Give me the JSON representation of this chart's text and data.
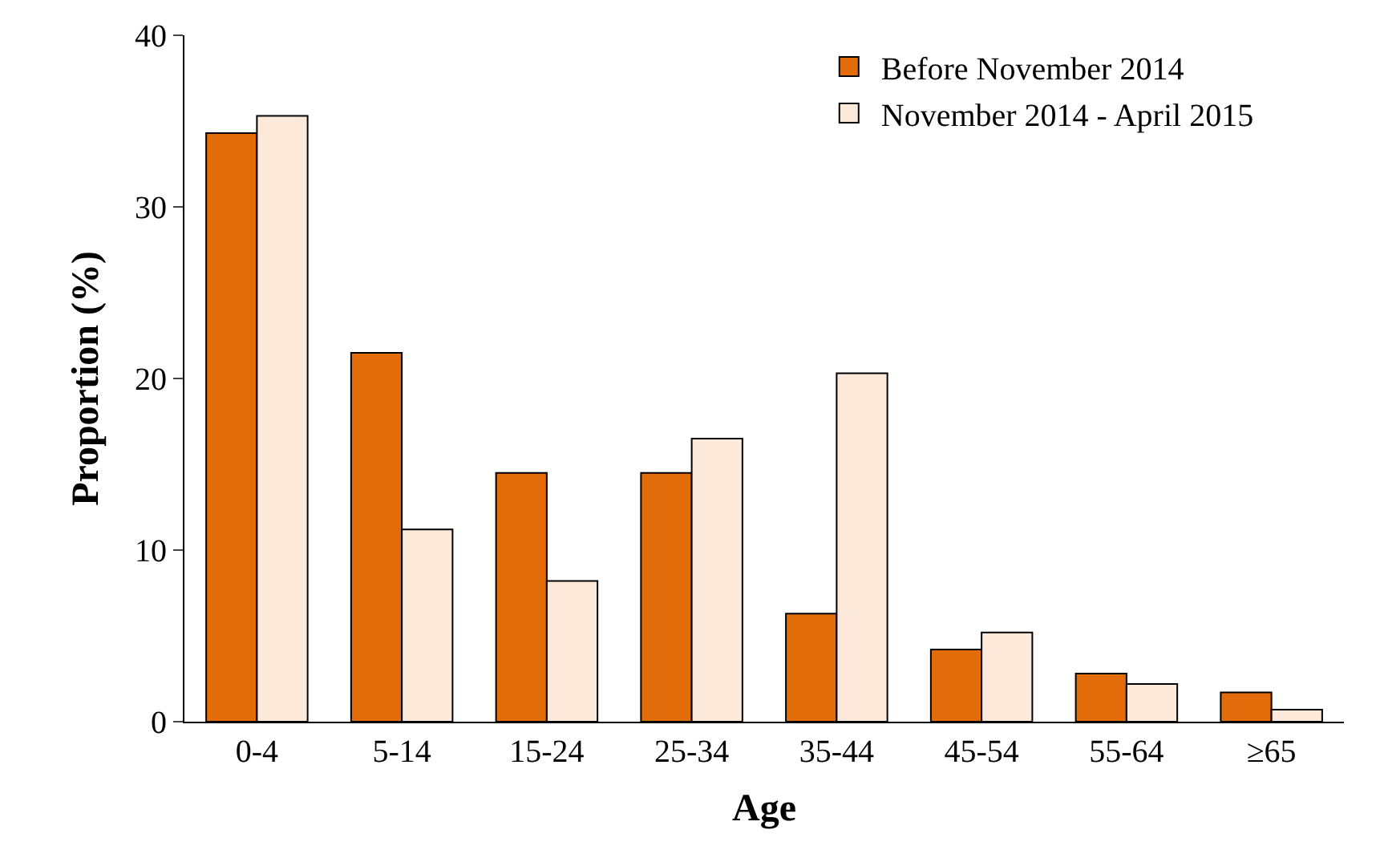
{
  "chart_data": {
    "type": "bar",
    "xlabel": "Age",
    "ylabel": "Proportion (%)",
    "categories": [
      "0-4",
      "5-14",
      "15-24",
      "25-34",
      "35-44",
      "45-54",
      "55-64",
      "≥65"
    ],
    "series": [
      {
        "name": "Before November 2014",
        "color": "#e36c0a",
        "values": [
          34.3,
          21.5,
          14.5,
          14.5,
          6.3,
          4.2,
          2.8,
          1.7
        ]
      },
      {
        "name": "November 2014 - April 2015",
        "color": "#fde9d9",
        "values": [
          35.3,
          11.2,
          8.2,
          16.5,
          20.3,
          5.2,
          2.2,
          0.7
        ]
      }
    ],
    "ylim": [
      0,
      40
    ],
    "yticks": [
      0,
      10,
      20,
      30,
      40
    ],
    "legend": "top right"
  }
}
